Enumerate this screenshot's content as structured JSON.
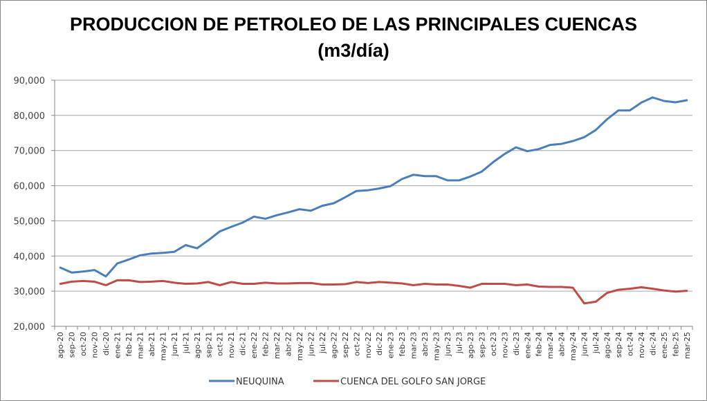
{
  "chart_data": {
    "type": "line",
    "title": "PRODUCCION DE PETROLEO DE LAS PRINCIPALES CUENCAS",
    "subtitle": "(m3/día)",
    "xlabel": "",
    "ylabel": "",
    "ylim": [
      20000,
      90000
    ],
    "yticks": [
      20000,
      30000,
      40000,
      50000,
      60000,
      70000,
      80000,
      90000
    ],
    "ytick_labels": [
      "20,000",
      "30,000",
      "40,000",
      "50,000",
      "60,000",
      "70,000",
      "80,000",
      "90,000"
    ],
    "grid": true,
    "legend_position": "bottom",
    "categories": [
      "ago-20",
      "sep-20",
      "oct-20",
      "nov-20",
      "dic-20",
      "ene-21",
      "feb-21",
      "mar-21",
      "abr-21",
      "may-21",
      "jun-21",
      "jul-21",
      "ago-21",
      "sep-21",
      "oct-21",
      "nov-21",
      "dic-21",
      "ene-22",
      "feb-22",
      "mar-22",
      "abr-22",
      "may-22",
      "jun-22",
      "jul-22",
      "ago-22",
      "sep-22",
      "oct-22",
      "nov-22",
      "dic-22",
      "ene-23",
      "feb-23",
      "mar-23",
      "abr-23",
      "may-23",
      "jun-23",
      "jul-23",
      "ago-23",
      "sep-23",
      "oct-23",
      "nov-23",
      "dic-23",
      "ene-24",
      "feb-24",
      "mar-24",
      "abr-24",
      "may-24",
      "jun-24",
      "jul-24",
      "ago-24",
      "sep-24",
      "oct-24",
      "nov-24",
      "dic-24",
      "ene-25",
      "feb-25",
      "mar-25"
    ],
    "series": [
      {
        "name": "NEUQUINA",
        "color": "#4a7ebb",
        "values": [
          36700,
          35300,
          35600,
          36000,
          34200,
          37900,
          39000,
          40200,
          40700,
          40900,
          41200,
          43100,
          42200,
          44500,
          47000,
          48300,
          49500,
          51200,
          50600,
          51600,
          52400,
          53300,
          52900,
          54300,
          55000,
          56700,
          58500,
          58700,
          59200,
          59900,
          61900,
          63100,
          62700,
          62700,
          61500,
          61500,
          62600,
          64000,
          66700,
          69000,
          70900,
          69800,
          70400,
          71600,
          71900,
          72700,
          73800,
          75800,
          78900,
          81400,
          81400,
          83600,
          85100,
          84100,
          83700,
          84300
        ]
      },
      {
        "name": "CUENCA DEL GOLFO SAN JORGE",
        "color": "#be4b48",
        "values": [
          32100,
          32700,
          32900,
          32700,
          31700,
          33100,
          33100,
          32600,
          32700,
          32900,
          32400,
          32100,
          32200,
          32600,
          31700,
          32600,
          32100,
          32100,
          32400,
          32200,
          32200,
          32300,
          32300,
          31900,
          31900,
          32000,
          32600,
          32300,
          32600,
          32400,
          32200,
          31700,
          32100,
          31900,
          31900,
          31500,
          31000,
          32100,
          32100,
          32100,
          31700,
          31900,
          31300,
          31200,
          31200,
          31000,
          26500,
          27000,
          29500,
          30400,
          30700,
          31100,
          30700,
          30200,
          29900,
          30100
        ]
      }
    ]
  }
}
